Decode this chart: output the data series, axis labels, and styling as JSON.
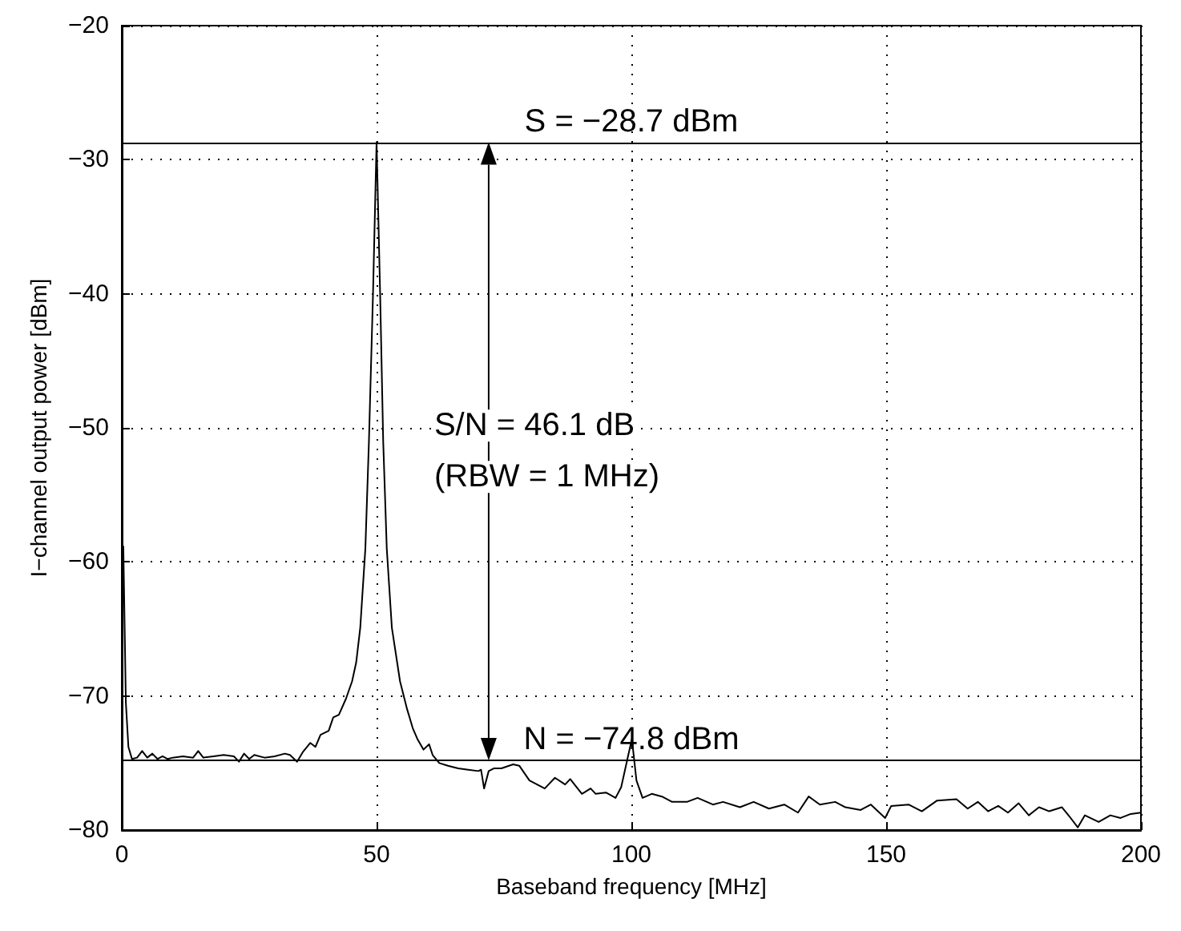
{
  "chart_data": {
    "type": "line",
    "xlabel": "Baseband frequency [MHz]",
    "ylabel": "I−channel output power [dBm]",
    "xlim": [
      0,
      200
    ],
    "xticks": [
      0,
      50,
      100,
      150,
      200
    ],
    "ylim": [
      -80,
      -20
    ],
    "yticks": [
      -80,
      -70,
      -60,
      -50,
      -40,
      -30,
      -20
    ],
    "grid": true,
    "marker": "none",
    "line_style": "solid",
    "series": [
      {
        "color": "#000000",
        "x": [
          0.3,
          0.8,
          1.3,
          2,
          3,
          4,
          5,
          6,
          7,
          8,
          9,
          10,
          12,
          14,
          15,
          16,
          18,
          20,
          22,
          23,
          24,
          25,
          26,
          28,
          30,
          32,
          33,
          34.4,
          35.5,
          37,
          38,
          39,
          40.6,
          41.5,
          42.6,
          44,
          45.2,
          46,
          46.8,
          47.8,
          48.5,
          49.3,
          50,
          50.7,
          51.3,
          52,
          53,
          54.6,
          56,
          57.1,
          58,
          59.2,
          60.3,
          61,
          62.3,
          64,
          66,
          68,
          70,
          70.5,
          71.1,
          72,
          73,
          74.5,
          76.8,
          78,
          80,
          83,
          85,
          87,
          88,
          90.3,
          92,
          93,
          95,
          96.9,
          98,
          100.1,
          101,
          102.2,
          104,
          106,
          108,
          110.9,
          113,
          116,
          118,
          121.3,
          124,
          127,
          130,
          132.7,
          134.8,
          137,
          140,
          142,
          145,
          147,
          149.8,
          151,
          154.4,
          157,
          160,
          163.8,
          166,
          168,
          170,
          172,
          173.9,
          176,
          178,
          180,
          182,
          184.5,
          186,
          187.6,
          189,
          191.7,
          194,
          196,
          198,
          200
        ],
        "values": [
          -58.8,
          -70.5,
          -73.8,
          -74.7,
          -74.6,
          -74.1,
          -74.6,
          -74.3,
          -74.7,
          -74.5,
          -74.7,
          -74.6,
          -74.5,
          -74.6,
          -74.1,
          -74.6,
          -74.5,
          -74.4,
          -74.5,
          -74.9,
          -74.3,
          -74.7,
          -74.4,
          -74.6,
          -74.5,
          -74.3,
          -74.4,
          -74.9,
          -74.2,
          -73.5,
          -73.8,
          -72.9,
          -72.6,
          -71.6,
          -71.4,
          -70.2,
          -68.9,
          -67.5,
          -64.9,
          -59,
          -51,
          -40,
          -28.7,
          -40,
          -51,
          -59,
          -64.9,
          -68.9,
          -71,
          -72.4,
          -73.2,
          -74,
          -73.6,
          -74.4,
          -75,
          -75.2,
          -75.4,
          -75.5,
          -75.6,
          -75.5,
          -76.9,
          -75.6,
          -75.4,
          -75.4,
          -75.1,
          -75.2,
          -76.3,
          -76.9,
          -76.1,
          -76.6,
          -76.2,
          -77.3,
          -76.9,
          -77.3,
          -77.2,
          -77.6,
          -76.8,
          -73.2,
          -76.3,
          -77.6,
          -77.3,
          -77.5,
          -77.9,
          -77.9,
          -77.6,
          -78.1,
          -77.9,
          -78.3,
          -77.9,
          -78.4,
          -78.1,
          -78.7,
          -77.5,
          -78.1,
          -77.9,
          -78.3,
          -78.5,
          -78.1,
          -79.1,
          -78.2,
          -78.1,
          -78.6,
          -77.8,
          -77.7,
          -78.4,
          -77.9,
          -78.6,
          -78.2,
          -78.7,
          -78,
          -78.9,
          -78.3,
          -78.6,
          -78.3,
          -79,
          -79.8,
          -78.9,
          -79.4,
          -78.9,
          -79.1,
          -78.8,
          -78.7
        ]
      }
    ],
    "ref_lines": [
      {
        "axis": "y",
        "value": -28.7,
        "label": "S = −28.7 dBm"
      },
      {
        "axis": "y",
        "value": -74.8,
        "label": "N = −74.8 dBm"
      }
    ],
    "annotations": [
      "S/N = 46.1 dB",
      "(RBW = 1 MHz)"
    ]
  }
}
